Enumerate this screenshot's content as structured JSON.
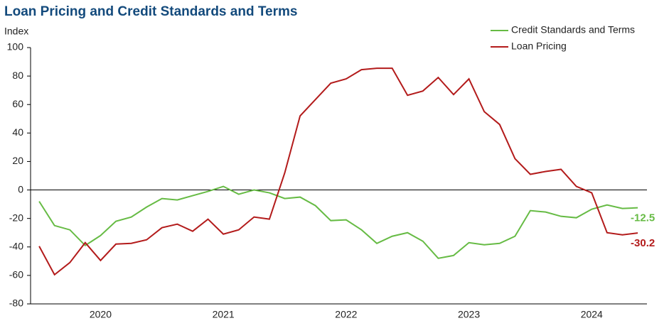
{
  "chart_data": {
    "type": "line",
    "title": "Loan Pricing  and Credit Standards and Terms",
    "y_axis_label": "Index",
    "x": [
      2020.0,
      2020.125,
      2020.25,
      2020.375,
      2020.5,
      2020.625,
      2020.75,
      2020.875,
      2021.0,
      2021.125,
      2021.25,
      2021.375,
      2021.5,
      2021.625,
      2021.75,
      2021.875,
      2022.0,
      2022.125,
      2022.25,
      2022.375,
      2022.5,
      2022.625,
      2022.75,
      2022.875,
      2023.0,
      2023.125,
      2023.25,
      2023.375,
      2023.5,
      2023.625,
      2023.75,
      2023.875,
      2024.0,
      2024.125,
      2024.25,
      2024.375,
      2024.5,
      2024.625,
      2024.75,
      2024.875
    ],
    "series": [
      {
        "name": "Credit Standards and Terms",
        "color": "#66bb44",
        "values": [
          -8,
          -25,
          -28,
          -39,
          -32,
          -22,
          -19,
          -12,
          -6,
          -7,
          -4,
          -1,
          2.5,
          -3,
          0,
          -2,
          -6,
          -5,
          -11,
          -21.5,
          -21,
          -28,
          -37.5,
          -32.5,
          -30,
          -36,
          -48,
          -46,
          -37,
          -38.5,
          -37.5,
          -32.5,
          -14.5,
          -15.5,
          -18.5,
          -19.5,
          -13.5,
          -10.5,
          -13,
          -12.5
        ]
      },
      {
        "name": "Loan Pricing",
        "color": "#b31b1b",
        "values": [
          -39.5,
          -59.5,
          -51,
          -37,
          -49.5,
          -38,
          -37.5,
          -35,
          -26.5,
          -24,
          -29,
          -20.5,
          -31,
          -28,
          -19,
          -20.5,
          12,
          52,
          63.5,
          75,
          78,
          84.5,
          85.5,
          85.5,
          66.5,
          69.5,
          79,
          67,
          78,
          55,
          46,
          22,
          11,
          13,
          14.5,
          2.5,
          -2,
          -30,
          -31.5,
          -30.2
        ]
      }
    ],
    "xlim": [
      2019.93,
      2024.95
    ],
    "xticks": [
      {
        "value": 2020.5,
        "label": "2020"
      },
      {
        "value": 2021.5,
        "label": "2021"
      },
      {
        "value": 2022.5,
        "label": "2022"
      },
      {
        "value": 2023.5,
        "label": "2023"
      },
      {
        "value": 2024.5,
        "label": "2024"
      }
    ],
    "ylim": [
      -80,
      100
    ],
    "yticks": [
      -80,
      -60,
      -40,
      -20,
      0,
      20,
      40,
      60,
      80,
      100
    ],
    "legend": "top-right"
  }
}
